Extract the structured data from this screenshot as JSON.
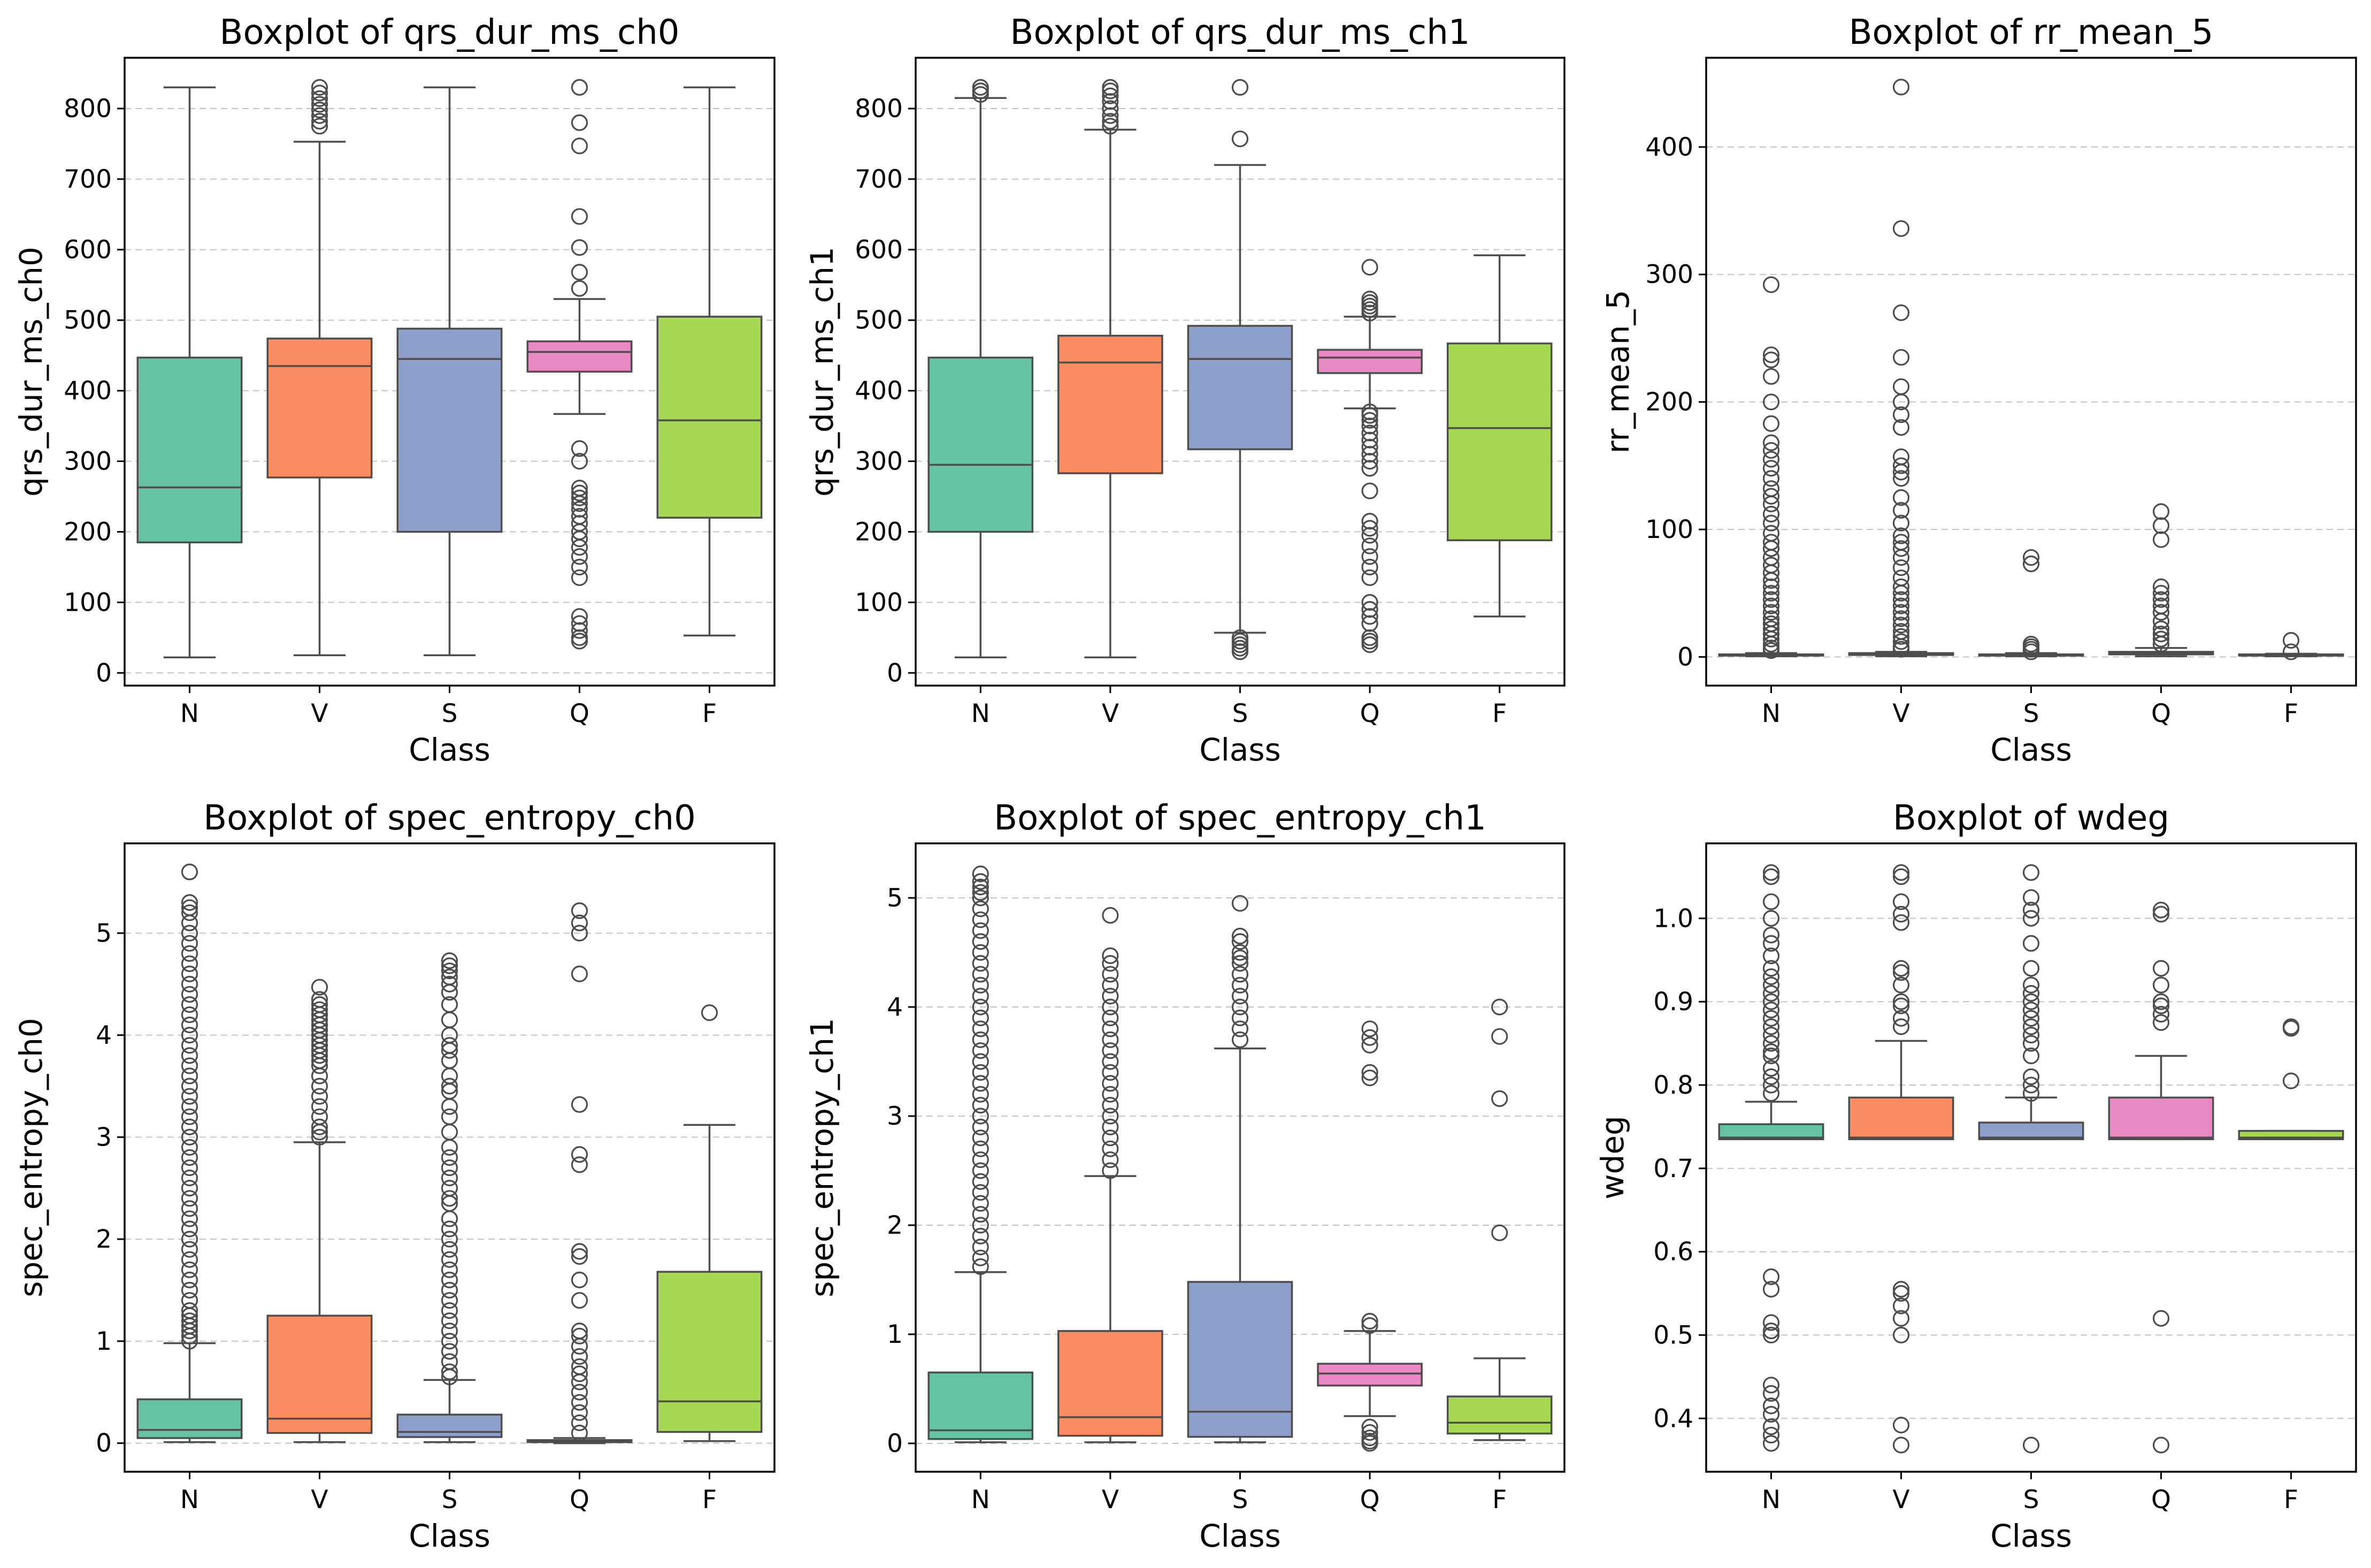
{
  "palette": {
    "N": "#66c2a5",
    "V": "#fc8d62",
    "S": "#8da0cb",
    "Q": "#e78ac3",
    "F": "#a6d854"
  },
  "chart_data": [
    {
      "type": "box",
      "title": "Boxplot of qrs_dur_ms_ch0",
      "xlabel": "Class",
      "ylabel": "qrs_dur_ms_ch0",
      "categories": [
        "N",
        "V",
        "S",
        "Q",
        "F"
      ],
      "ylim": [
        -18,
        872
      ],
      "yticks": [
        0,
        100,
        200,
        300,
        400,
        500,
        600,
        700,
        800
      ],
      "boxes": [
        {
          "class": "N",
          "whislo": 22,
          "q1": 185,
          "med": 263,
          "q3": 447,
          "whishi": 830,
          "fliers": []
        },
        {
          "class": "V",
          "whislo": 25,
          "q1": 277,
          "med": 435,
          "q3": 474,
          "whishi": 753,
          "fliers": [
            775,
            782,
            790,
            798,
            806,
            814,
            822,
            830
          ]
        },
        {
          "class": "S",
          "whislo": 25,
          "q1": 200,
          "med": 445,
          "q3": 488,
          "whishi": 830,
          "fliers": []
        },
        {
          "class": "Q",
          "whislo": 367,
          "q1": 427,
          "med": 455,
          "q3": 470,
          "whishi": 530,
          "fliers": [
            830,
            780,
            747,
            647,
            603,
            568,
            545,
            318,
            300,
            262,
            255,
            248,
            240,
            232,
            222,
            212,
            200,
            190,
            178,
            165,
            150,
            135,
            80,
            70,
            60,
            50,
            45
          ]
        },
        {
          "class": "F",
          "whislo": 53,
          "q1": 220,
          "med": 358,
          "q3": 505,
          "whishi": 830,
          "fliers": []
        }
      ]
    },
    {
      "type": "box",
      "title": "Boxplot of qrs_dur_ms_ch1",
      "xlabel": "Class",
      "ylabel": "qrs_dur_ms_ch1",
      "categories": [
        "N",
        "V",
        "S",
        "Q",
        "F"
      ],
      "ylim": [
        -18,
        872
      ],
      "yticks": [
        0,
        100,
        200,
        300,
        400,
        500,
        600,
        700,
        800
      ],
      "boxes": [
        {
          "class": "N",
          "whislo": 22,
          "q1": 200,
          "med": 295,
          "q3": 447,
          "whishi": 815,
          "fliers": [
            820,
            825,
            830
          ]
        },
        {
          "class": "V",
          "whislo": 22,
          "q1": 283,
          "med": 440,
          "q3": 478,
          "whishi": 770,
          "fliers": [
            775,
            782,
            790,
            800,
            810,
            818,
            825,
            830
          ]
        },
        {
          "class": "S",
          "whislo": 57,
          "q1": 317,
          "med": 445,
          "q3": 492,
          "whishi": 720,
          "fliers": [
            830,
            757,
            50,
            45,
            40,
            35,
            30
          ]
        },
        {
          "class": "Q",
          "whislo": 375,
          "q1": 425,
          "med": 447,
          "q3": 458,
          "whishi": 505,
          "fliers": [
            575,
            530,
            525,
            520,
            515,
            510,
            370,
            365,
            358,
            350,
            340,
            330,
            320,
            310,
            300,
            290,
            258,
            215,
            205,
            195,
            180,
            165,
            150,
            135,
            100,
            90,
            80,
            70,
            50,
            45,
            40
          ]
        },
        {
          "class": "F",
          "whislo": 80,
          "q1": 188,
          "med": 347,
          "q3": 467,
          "whishi": 592,
          "fliers": []
        }
      ]
    },
    {
      "type": "box",
      "title": "Boxplot of rr_mean_5",
      "xlabel": "Class",
      "ylabel": "rr_mean_5",
      "categories": [
        "N",
        "V",
        "S",
        "Q",
        "F"
      ],
      "ylim": [
        -22.5,
        470
      ],
      "yticks": [
        0,
        100,
        200,
        300,
        400
      ],
      "boxes": [
        {
          "class": "N",
          "whislo": 0.5,
          "q1": 1,
          "med": 1.5,
          "q3": 2,
          "whishi": 3,
          "fliers": [
            292,
            237,
            233,
            220,
            200,
            183,
            168,
            162,
            155,
            148,
            140,
            132,
            126,
            120,
            112,
            105,
            97,
            90,
            85,
            78,
            72,
            66,
            60,
            55,
            50,
            45,
            40,
            35,
            30,
            26,
            22,
            18,
            14,
            10,
            7,
            5
          ]
        },
        {
          "class": "V",
          "whislo": 0.5,
          "q1": 1.5,
          "med": 2,
          "q3": 3,
          "whishi": 4,
          "fliers": [
            447,
            336,
            270,
            235,
            212,
            200,
            190,
            180,
            157,
            150,
            145,
            140,
            125,
            115,
            105,
            95,
            90,
            85,
            78,
            70,
            62,
            55,
            50,
            45,
            40,
            35,
            30,
            25,
            20,
            16,
            12,
            8,
            6
          ]
        },
        {
          "class": "S",
          "whislo": 0.5,
          "q1": 1,
          "med": 1.5,
          "q3": 2,
          "whishi": 3,
          "fliers": [
            78,
            73,
            10,
            8,
            6,
            4
          ]
        },
        {
          "class": "Q",
          "whislo": 0.5,
          "q1": 2,
          "med": 3,
          "q3": 4,
          "whishi": 7,
          "fliers": [
            114,
            103,
            92,
            55,
            50,
            45,
            40,
            35,
            28,
            22,
            18,
            14,
            10
          ]
        },
        {
          "class": "F",
          "whislo": 0.5,
          "q1": 1,
          "med": 1.5,
          "q3": 2,
          "whishi": 2.5,
          "fliers": [
            13,
            4
          ]
        }
      ]
    },
    {
      "type": "box",
      "title": "Boxplot of spec_entropy_ch0",
      "xlabel": "Class",
      "ylabel": "spec_entropy_ch0",
      "categories": [
        "N",
        "V",
        "S",
        "Q",
        "F"
      ],
      "ylim": [
        -0.28,
        5.88
      ],
      "yticks": [
        0,
        1,
        2,
        3,
        4,
        5
      ],
      "boxes": [
        {
          "class": "N",
          "whislo": 0.01,
          "q1": 0.05,
          "med": 0.13,
          "q3": 0.43,
          "whishi": 0.98,
          "fliers": [
            5.6,
            5.3,
            5.25,
            5.2,
            5.1,
            5.0,
            4.9,
            4.8,
            4.7,
            4.6,
            4.5,
            4.4,
            4.3,
            4.2,
            4.1,
            4.0,
            3.9,
            3.8,
            3.7,
            3.6,
            3.5,
            3.4,
            3.3,
            3.2,
            3.1,
            3.0,
            2.9,
            2.8,
            2.7,
            2.6,
            2.5,
            2.4,
            2.3,
            2.2,
            2.1,
            2.0,
            1.9,
            1.8,
            1.7,
            1.6,
            1.5,
            1.4,
            1.3,
            1.25,
            1.2,
            1.15,
            1.1,
            1.05,
            1.0
          ]
        },
        {
          "class": "V",
          "whislo": 0.01,
          "q1": 0.1,
          "med": 0.24,
          "q3": 1.25,
          "whishi": 2.95,
          "fliers": [
            4.47,
            4.35,
            4.3,
            4.25,
            4.2,
            4.15,
            4.1,
            4.05,
            4.0,
            3.95,
            3.9,
            3.85,
            3.8,
            3.75,
            3.7,
            3.6,
            3.5,
            3.4,
            3.3,
            3.2,
            3.1,
            3.05,
            3.0
          ]
        },
        {
          "class": "S",
          "whislo": 0.01,
          "q1": 0.06,
          "med": 0.11,
          "q3": 0.28,
          "whishi": 0.62,
          "fliers": [
            4.73,
            4.68,
            4.63,
            4.57,
            4.5,
            4.42,
            4.3,
            4.15,
            4.0,
            3.9,
            3.85,
            3.75,
            3.6,
            3.5,
            3.45,
            3.3,
            3.2,
            3.05,
            2.9,
            2.8,
            2.7,
            2.6,
            2.5,
            2.4,
            2.35,
            2.2,
            2.1,
            2.0,
            1.9,
            1.8,
            1.7,
            1.6,
            1.5,
            1.4,
            1.3,
            1.2,
            1.1,
            1.0,
            0.9,
            0.8,
            0.7,
            0.65
          ]
        },
        {
          "class": "Q",
          "whislo": 0.0,
          "q1": 0.01,
          "med": 0.02,
          "q3": 0.03,
          "whishi": 0.05,
          "fliers": [
            5.22,
            5.1,
            5.0,
            4.6,
            3.32,
            2.83,
            2.73,
            1.88,
            1.83,
            1.6,
            1.4,
            1.1,
            1.05,
            0.95,
            0.85,
            0.75,
            0.68,
            0.6,
            0.5,
            0.4,
            0.3,
            0.2,
            0.1
          ]
        },
        {
          "class": "F",
          "whislo": 0.02,
          "q1": 0.11,
          "med": 0.41,
          "q3": 1.68,
          "whishi": 3.12,
          "fliers": [
            4.22
          ]
        }
      ]
    },
    {
      "type": "box",
      "title": "Boxplot of spec_entropy_ch1",
      "xlabel": "Class",
      "ylabel": "spec_entropy_ch1",
      "categories": [
        "N",
        "V",
        "S",
        "Q",
        "F"
      ],
      "ylim": [
        -0.26,
        5.5
      ],
      "yticks": [
        0,
        1,
        2,
        3,
        4,
        5
      ],
      "boxes": [
        {
          "class": "N",
          "whislo": 0.01,
          "q1": 0.04,
          "med": 0.12,
          "q3": 0.65,
          "whishi": 1.57,
          "fliers": [
            5.22,
            5.15,
            5.1,
            5.05,
            5.0,
            4.9,
            4.8,
            4.7,
            4.6,
            4.5,
            4.4,
            4.3,
            4.2,
            4.1,
            4.0,
            3.9,
            3.8,
            3.7,
            3.6,
            3.5,
            3.4,
            3.3,
            3.2,
            3.1,
            3.0,
            2.9,
            2.8,
            2.7,
            2.6,
            2.5,
            2.4,
            2.3,
            2.2,
            2.1,
            2.0,
            1.9,
            1.8,
            1.7,
            1.62
          ]
        },
        {
          "class": "V",
          "whislo": 0.01,
          "q1": 0.07,
          "med": 0.24,
          "q3": 1.03,
          "whishi": 2.45,
          "fliers": [
            4.84,
            4.47,
            4.4,
            4.3,
            4.2,
            4.1,
            4.0,
            3.9,
            3.8,
            3.7,
            3.6,
            3.5,
            3.4,
            3.3,
            3.2,
            3.1,
            3.0,
            2.9,
            2.8,
            2.7,
            2.6,
            2.5
          ]
        },
        {
          "class": "S",
          "whislo": 0.01,
          "q1": 0.06,
          "med": 0.29,
          "q3": 1.48,
          "whishi": 3.62,
          "fliers": [
            4.95,
            4.65,
            4.6,
            4.5,
            4.45,
            4.4,
            4.3,
            4.2,
            4.1,
            4.0,
            3.9,
            3.8,
            3.7
          ]
        },
        {
          "class": "Q",
          "whislo": 0.25,
          "q1": 0.53,
          "med": 0.64,
          "q3": 0.73,
          "whishi": 1.03,
          "fliers": [
            3.8,
            3.72,
            3.65,
            3.4,
            3.35,
            1.12,
            1.08,
            0.15,
            0.1,
            0.05,
            0.02,
            0.0
          ]
        },
        {
          "class": "F",
          "whislo": 0.03,
          "q1": 0.09,
          "med": 0.19,
          "q3": 0.43,
          "whishi": 0.78,
          "fliers": [
            4.0,
            3.73,
            3.16,
            1.93
          ]
        }
      ]
    },
    {
      "type": "box",
      "title": "Boxplot of wdeg",
      "xlabel": "Class",
      "ylabel": "wdeg",
      "categories": [
        "N",
        "V",
        "S",
        "Q",
        "F"
      ],
      "ylim": [
        0.336,
        1.09
      ],
      "yticks": [
        0.4,
        0.5,
        0.6,
        0.7,
        0.8,
        0.9,
        1.0
      ],
      "ytick_labels": [
        "0.4",
        "0.5",
        "0.6",
        "0.7",
        "0.8",
        "0.9",
        "1.0"
      ],
      "boxes": [
        {
          "class": "N",
          "whislo": 0.735,
          "q1": 0.735,
          "med": 0.737,
          "q3": 0.753,
          "whishi": 0.78,
          "fliers": [
            1.055,
            1.05,
            1.02,
            1.0,
            0.98,
            0.97,
            0.955,
            0.94,
            0.93,
            0.92,
            0.91,
            0.9,
            0.89,
            0.88,
            0.87,
            0.86,
            0.85,
            0.84,
            0.835,
            0.82,
            0.81,
            0.8,
            0.79,
            0.57,
            0.555,
            0.515,
            0.505,
            0.5,
            0.44,
            0.43,
            0.415,
            0.405,
            0.39,
            0.38,
            0.37
          ]
        },
        {
          "class": "V",
          "whislo": 0.735,
          "q1": 0.735,
          "med": 0.737,
          "q3": 0.785,
          "whishi": 0.853,
          "fliers": [
            1.055,
            1.05,
            1.02,
            1.005,
            0.995,
            0.94,
            0.935,
            0.92,
            0.9,
            0.895,
            0.88,
            0.87,
            0.555,
            0.55,
            0.535,
            0.52,
            0.5,
            0.392,
            0.368
          ]
        },
        {
          "class": "S",
          "whislo": 0.735,
          "q1": 0.735,
          "med": 0.737,
          "q3": 0.755,
          "whishi": 0.785,
          "fliers": [
            1.055,
            1.025,
            1.01,
            1.0,
            0.97,
            0.94,
            0.92,
            0.91,
            0.9,
            0.89,
            0.88,
            0.87,
            0.86,
            0.85,
            0.835,
            0.81,
            0.8,
            0.79,
            0.368
          ]
        },
        {
          "class": "Q",
          "whislo": 0.735,
          "q1": 0.735,
          "med": 0.737,
          "q3": 0.785,
          "whishi": 0.835,
          "fliers": [
            1.01,
            1.005,
            0.94,
            0.92,
            0.9,
            0.895,
            0.885,
            0.875,
            0.52,
            0.368
          ]
        },
        {
          "class": "F",
          "whislo": 0.735,
          "q1": 0.735,
          "med": 0.737,
          "q3": 0.745,
          "whishi": 0.745,
          "fliers": [
            0.87,
            0.868,
            0.805
          ]
        }
      ]
    }
  ]
}
